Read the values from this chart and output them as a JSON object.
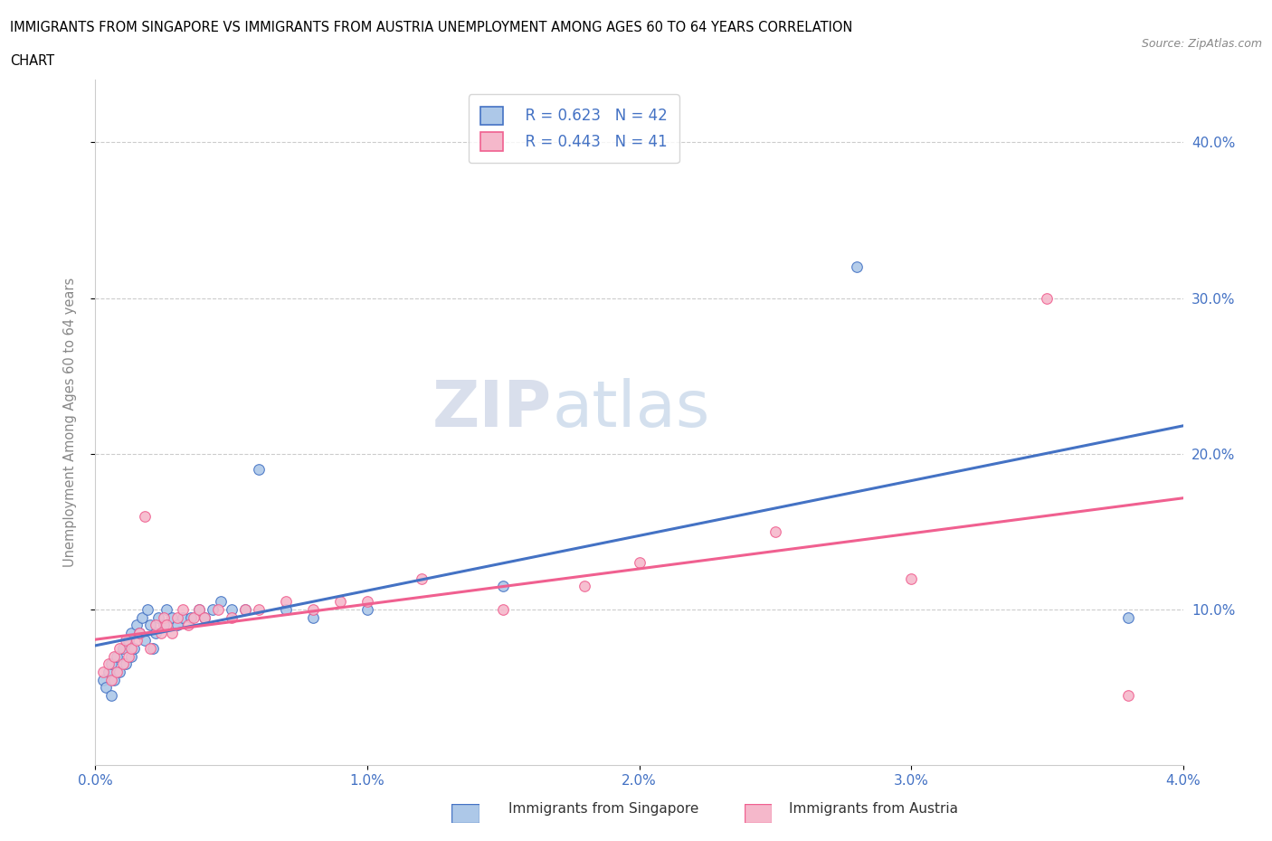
{
  "title_line1": "IMMIGRANTS FROM SINGAPORE VS IMMIGRANTS FROM AUSTRIA UNEMPLOYMENT AMONG AGES 60 TO 64 YEARS CORRELATION",
  "title_line2": "CHART",
  "source": "Source: ZipAtlas.com",
  "ylabel": "Unemployment Among Ages 60 to 64 years",
  "xlim": [
    0.0,
    0.04
  ],
  "ylim": [
    0.0,
    0.44
  ],
  "xticks": [
    0.0,
    0.01,
    0.02,
    0.03,
    0.04
  ],
  "yticks": [
    0.1,
    0.2,
    0.3,
    0.4
  ],
  "xticklabels": [
    "0.0%",
    "1.0%",
    "2.0%",
    "3.0%",
    "4.0%"
  ],
  "yticklabels_right": [
    "10.0%",
    "20.0%",
    "30.0%",
    "40.0%"
  ],
  "legend_r_singapore": "R = 0.623",
  "legend_n_singapore": "N = 42",
  "legend_r_austria": "R = 0.443",
  "legend_n_austria": "N = 41",
  "color_singapore": "#adc8e8",
  "color_austria": "#f5b8cb",
  "color_singapore_line": "#4472c4",
  "color_austria_line": "#f06090",
  "watermark_zip": "ZIP",
  "watermark_atlas": "atlas",
  "singapore_x": [
    0.0003,
    0.0004,
    0.0005,
    0.0006,
    0.0006,
    0.0007,
    0.0008,
    0.0009,
    0.001,
    0.0011,
    0.0012,
    0.0013,
    0.0013,
    0.0014,
    0.0015,
    0.0016,
    0.0017,
    0.0018,
    0.0019,
    0.002,
    0.0021,
    0.0022,
    0.0023,
    0.0025,
    0.0026,
    0.0028,
    0.003,
    0.0032,
    0.0035,
    0.0038,
    0.004,
    0.0043,
    0.0046,
    0.005,
    0.0055,
    0.006,
    0.007,
    0.008,
    0.01,
    0.015,
    0.028,
    0.038
  ],
  "singapore_y": [
    0.055,
    0.05,
    0.06,
    0.045,
    0.065,
    0.055,
    0.07,
    0.06,
    0.075,
    0.065,
    0.08,
    0.07,
    0.085,
    0.075,
    0.09,
    0.085,
    0.095,
    0.08,
    0.1,
    0.09,
    0.075,
    0.085,
    0.095,
    0.09,
    0.1,
    0.095,
    0.09,
    0.095,
    0.095,
    0.1,
    0.095,
    0.1,
    0.105,
    0.1,
    0.1,
    0.19,
    0.1,
    0.095,
    0.1,
    0.115,
    0.32,
    0.095
  ],
  "austria_x": [
    0.0003,
    0.0005,
    0.0006,
    0.0007,
    0.0008,
    0.0009,
    0.001,
    0.0011,
    0.0012,
    0.0013,
    0.0015,
    0.0016,
    0.0018,
    0.002,
    0.0022,
    0.0024,
    0.0025,
    0.0026,
    0.0028,
    0.003,
    0.0032,
    0.0034,
    0.0036,
    0.0038,
    0.004,
    0.0045,
    0.005,
    0.0055,
    0.006,
    0.007,
    0.008,
    0.009,
    0.01,
    0.012,
    0.015,
    0.018,
    0.02,
    0.025,
    0.03,
    0.035,
    0.038
  ],
  "austria_y": [
    0.06,
    0.065,
    0.055,
    0.07,
    0.06,
    0.075,
    0.065,
    0.08,
    0.07,
    0.075,
    0.08,
    0.085,
    0.16,
    0.075,
    0.09,
    0.085,
    0.095,
    0.09,
    0.085,
    0.095,
    0.1,
    0.09,
    0.095,
    0.1,
    0.095,
    0.1,
    0.095,
    0.1,
    0.1,
    0.105,
    0.1,
    0.105,
    0.105,
    0.12,
    0.1,
    0.115,
    0.13,
    0.15,
    0.12,
    0.3,
    0.045
  ]
}
